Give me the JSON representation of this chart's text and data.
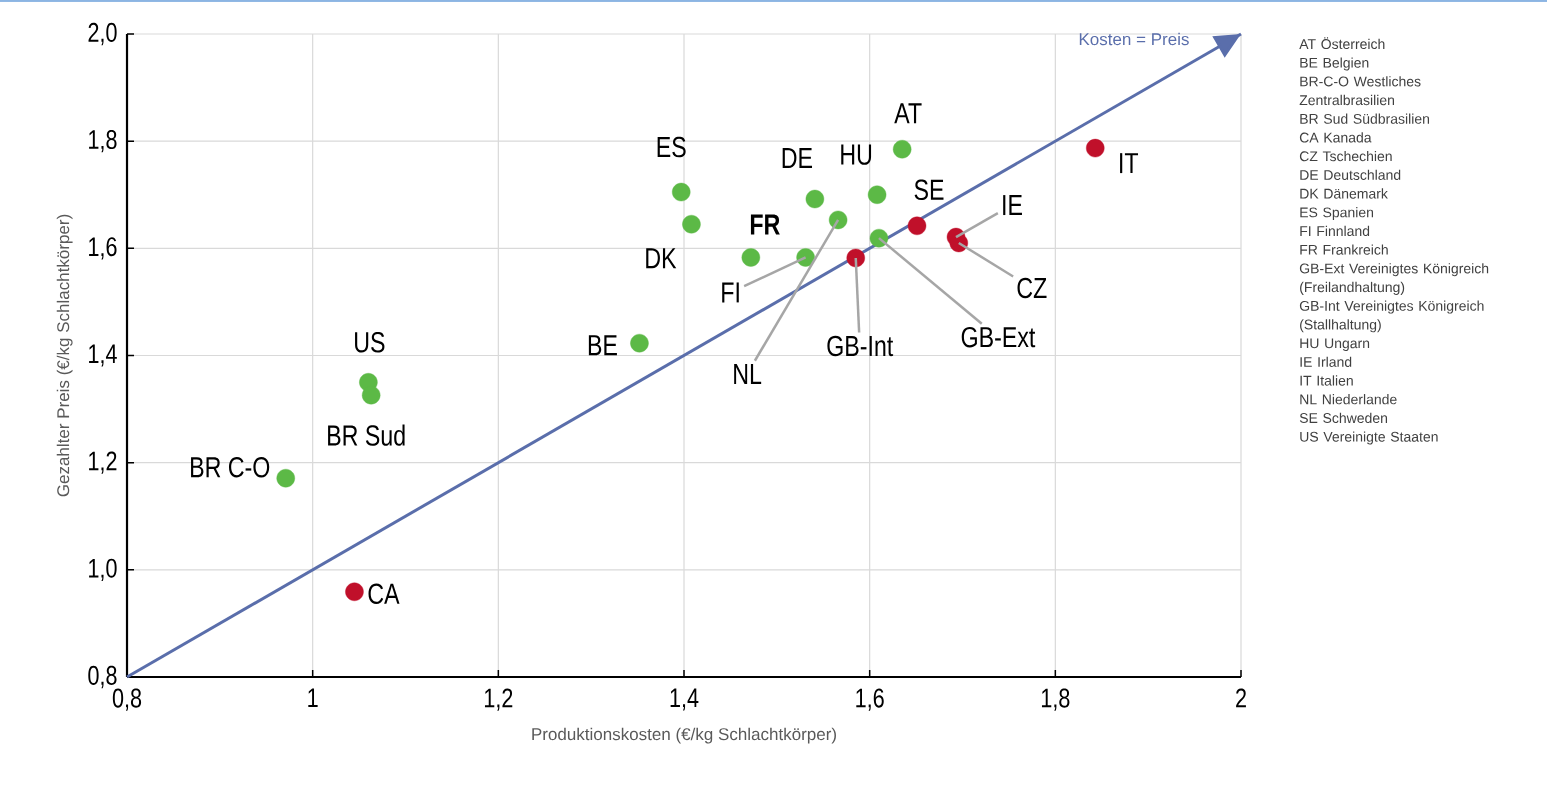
{
  "chart_data": {
    "type": "scatter",
    "xlabel": "Produktionskosten (€/kg Schlachtkörper)",
    "ylabel": "Gezahlter Preis (€/kg Schlachtkörper)",
    "xlim": [
      0.8,
      2.0
    ],
    "ylim": [
      0.8,
      2.0
    ],
    "xticks": [
      {
        "value": 0.8,
        "label": "0,8"
      },
      1,
      {
        "value": 1.2,
        "label": "1,2"
      },
      {
        "value": 1.4,
        "label": "1,4"
      },
      {
        "value": 1.6,
        "label": "1,6"
      },
      {
        "value": 1.8,
        "label": "1,8"
      },
      2
    ],
    "yticks": [
      {
        "value": 0.8,
        "label": "0,8"
      },
      {
        "value": 1.0,
        "label": "1,0"
      },
      {
        "value": 1.2,
        "label": "1,2"
      },
      {
        "value": 1.4,
        "label": "1,4"
      },
      {
        "value": 1.6,
        "label": "1,6"
      },
      {
        "value": 1.8,
        "label": "1,8"
      },
      {
        "value": 2.0,
        "label": "2,0"
      }
    ],
    "grid": true,
    "legend": "top right",
    "series": [
      {
        "marker": "circle",
        "color": "#5cb946",
        "x": [
          1.397,
          1.408,
          1.472,
          1.531,
          1.541,
          1.566,
          1.608,
          1.635,
          1.61,
          1.352,
          1.06,
          1.063,
          0.971
        ],
        "values": [
          1.705,
          1.645,
          1.583,
          1.583,
          1.692,
          1.653,
          1.7,
          1.785,
          1.619,
          1.423,
          1.35,
          1.326,
          1.171
        ]
      },
      {
        "marker": "circle",
        "color": "#c0102a",
        "x": [
          1.585,
          1.651,
          1.693,
          1.696,
          1.843,
          1.045
        ],
        "values": [
          1.582,
          1.642,
          1.621,
          1.61,
          1.787,
          0.959
        ]
      },
      {
        "type": "line",
        "name": "Kosten = Preis",
        "marker": "none",
        "color": "#5a6eab",
        "x": [
          0.8,
          2.0
        ],
        "values": [
          0.8,
          2.0
        ]
      }
    ],
    "annotations": [
      {
        "text": "ES",
        "x": 1.397,
        "y": 1.705
      },
      {
        "text": "DK",
        "x": 1.408,
        "y": 1.645
      },
      {
        "text": "**FR**",
        "x": 1.472,
        "y": 1.583
      },
      {
        "text": "FI",
        "x": 1.531,
        "y": 1.583
      },
      {
        "text": "DE",
        "x": 1.541,
        "y": 1.692
      },
      {
        "text": "NL",
        "x": 1.566,
        "y": 1.653
      },
      {
        "text": "HU",
        "x": 1.608,
        "y": 1.7
      },
      {
        "text": "AT",
        "x": 1.635,
        "y": 1.785
      },
      {
        "text": "GB-Ext",
        "x": 1.61,
        "y": 1.619
      },
      {
        "text": "BE",
        "x": 1.352,
        "y": 1.423
      },
      {
        "text": "US",
        "x": 1.06,
        "y": 1.35
      },
      {
        "text": "BR Sud",
        "x": 1.063,
        "y": 1.326
      },
      {
        "text": "BR C-O",
        "x": 0.971,
        "y": 1.171
      },
      {
        "text": "GB-Int",
        "x": 1.585,
        "y": 1.582
      },
      {
        "text": "SE",
        "x": 1.651,
        "y": 1.642
      },
      {
        "text": "IE",
        "x": 1.693,
        "y": 1.621
      },
      {
        "text": "CZ",
        "x": 1.696,
        "y": 1.61
      },
      {
        "text": "IT",
        "x": 1.843,
        "y": 1.787
      },
      {
        "text": "CA",
        "x": 1.045,
        "y": 0.959
      },
      "AT Österreich",
      "BE Belgien",
      "BR-C-O Westliches Zentralbrasilien",
      "BR Sud Südbrasilien",
      "CA Kanada",
      "CZ Tschechien",
      "DE Deutschland",
      "DK Dänemark",
      "ES Spanien",
      "FI Finnland",
      "FR Frankreich",
      "GB-Ext Vereinigtes Königreich (Freilandhaltung)",
      "GB-Int Vereinigtes Königreich (Stallhaltung)",
      "HU Ungarn",
      "IE Irland",
      "IT Italien",
      "NL Niederlande",
      "SE Schweden",
      "US Vereinigte Staaten"
    ]
  }
}
